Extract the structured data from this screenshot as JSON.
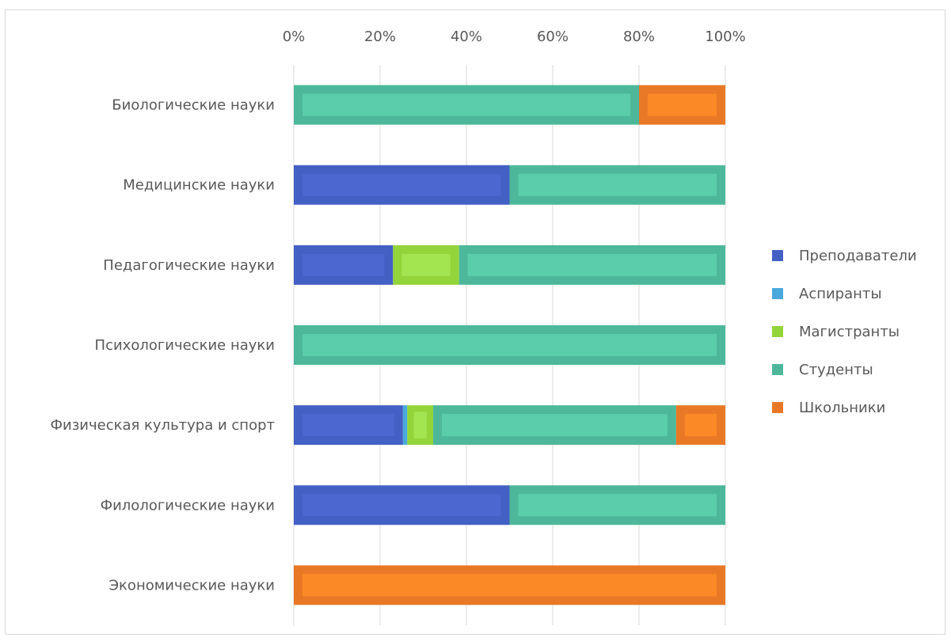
{
  "chart_data": {
    "type": "bar",
    "orientation": "horizontal",
    "stacked": "percent",
    "categories": [
      "Биологические науки",
      "Медицинские науки",
      "Педагогические науки",
      "Психологические науки",
      "Физическая культура и спорт",
      "Филологические науки",
      "Экономические науки"
    ],
    "series": [
      {
        "name": "Преподаватели",
        "color": "#4360c4",
        "inner_color": "#4a68cf",
        "values": [
          0,
          50,
          23,
          0,
          25.3,
          50,
          0
        ]
      },
      {
        "name": "Аспиранты",
        "color": "#4aa9dc",
        "inner_color": "#5bb8e6",
        "values": [
          0,
          0,
          0,
          0,
          1,
          0,
          0
        ]
      },
      {
        "name": "Магистранты",
        "color": "#93d43a",
        "inner_color": "#a3e451",
        "values": [
          0,
          0,
          15.3,
          0,
          6,
          0,
          0
        ]
      },
      {
        "name": "Студенты",
        "color": "#4db899",
        "inner_color": "#5ccdaa",
        "values": [
          80,
          50,
          61.7,
          100,
          56.3,
          50,
          0
        ]
      },
      {
        "name": "Школьники",
        "color": "#e87826",
        "inner_color": "#fb8a26",
        "values": [
          20,
          0,
          0,
          0,
          11.4,
          0,
          100
        ]
      }
    ],
    "x_ticks": [
      "0%",
      "20%",
      "40%",
      "60%",
      "80%",
      "100%"
    ],
    "xlim": [
      0,
      100
    ],
    "grid": true,
    "legend_position": "right",
    "title": "",
    "xlabel": "",
    "ylabel": ""
  }
}
